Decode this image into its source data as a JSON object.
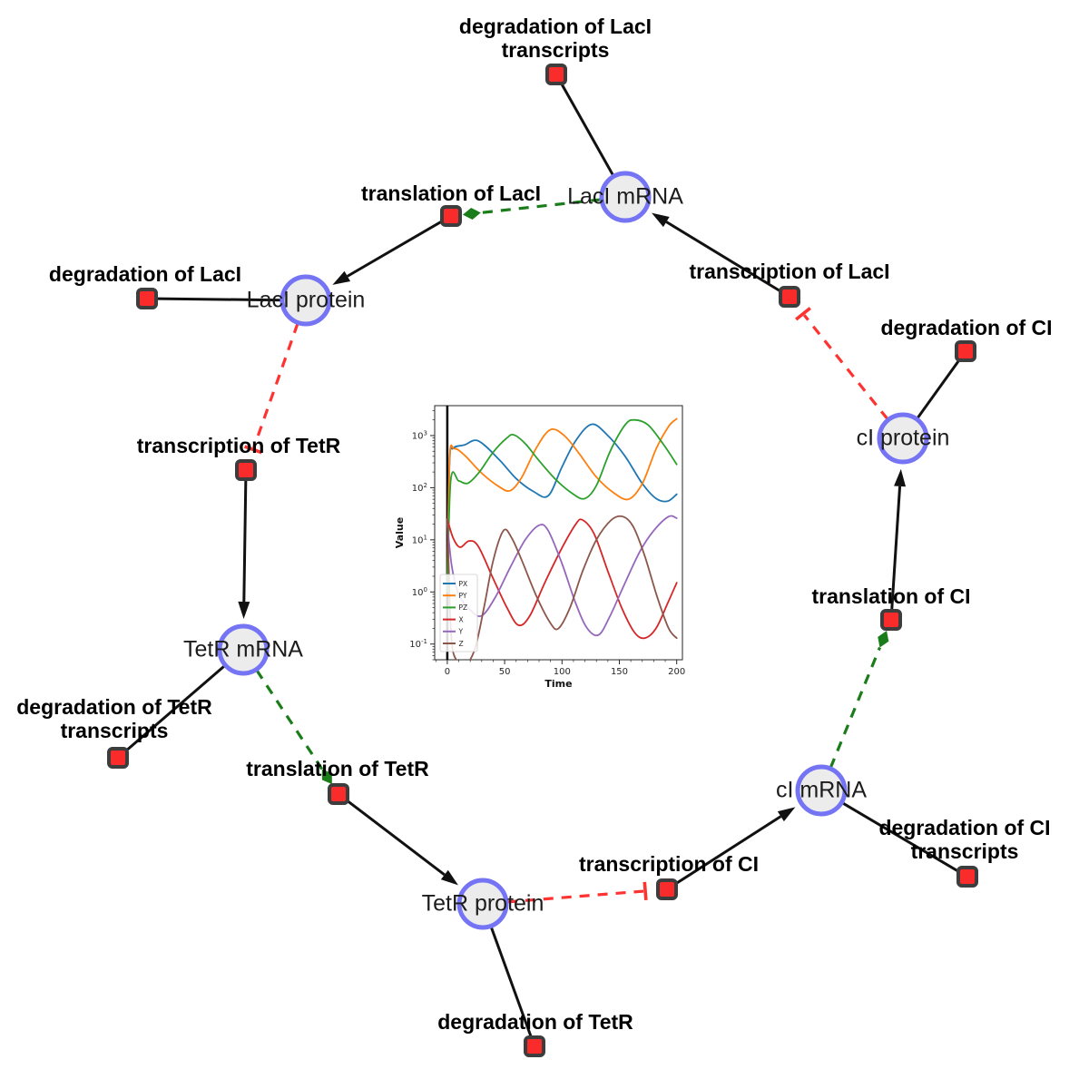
{
  "diagram": {
    "species": [
      {
        "id": "laci_mrna",
        "label": "LacI mRNA"
      },
      {
        "id": "laci_protein",
        "label": "LacI protein"
      },
      {
        "id": "tetr_mrna",
        "label": "TetR mRNA"
      },
      {
        "id": "tetr_protein",
        "label": "TetR protein"
      },
      {
        "id": "ci_mrna",
        "label": "cI mRNA"
      },
      {
        "id": "ci_protein",
        "label": "cI protein"
      }
    ],
    "reactions": [
      {
        "id": "deg_laci_tr",
        "label": "degradation of LacI transcripts"
      },
      {
        "id": "transl_laci",
        "label": "translation of LacI"
      },
      {
        "id": "deg_laci",
        "label": "degradation of LacI"
      },
      {
        "id": "transc_tetr",
        "label": "transcription of TetR"
      },
      {
        "id": "deg_tetr_tr",
        "label": "degradation of TetR transcripts"
      },
      {
        "id": "transl_tetr",
        "label": "translation of TetR"
      },
      {
        "id": "deg_tetr",
        "label": "degradation of TetR"
      },
      {
        "id": "transc_ci",
        "label": "transcription of CI"
      },
      {
        "id": "deg_ci_tr",
        "label": "degradation of CI transcripts"
      },
      {
        "id": "transl_ci",
        "label": "translation of CI"
      },
      {
        "id": "deg_ci",
        "label": "degradation of CI"
      },
      {
        "id": "transc_laci",
        "label": "transcription of LacI"
      }
    ],
    "edges": [
      {
        "source": "laci_mrna",
        "target": "deg_laci_tr",
        "type": "consumption"
      },
      {
        "source": "laci_mrna",
        "target": "transl_laci",
        "type": "modifier"
      },
      {
        "source": "transl_laci",
        "target": "laci_protein",
        "type": "production"
      },
      {
        "source": "laci_protein",
        "target": "deg_laci",
        "type": "consumption"
      },
      {
        "source": "laci_protein",
        "target": "transc_tetr",
        "type": "inhibition"
      },
      {
        "source": "transc_tetr",
        "target": "tetr_mrna",
        "type": "production"
      },
      {
        "source": "tetr_mrna",
        "target": "deg_tetr_tr",
        "type": "consumption"
      },
      {
        "source": "tetr_mrna",
        "target": "transl_tetr",
        "type": "modifier"
      },
      {
        "source": "transl_tetr",
        "target": "tetr_protein",
        "type": "production"
      },
      {
        "source": "tetr_protein",
        "target": "deg_tetr",
        "type": "consumption"
      },
      {
        "source": "tetr_protein",
        "target": "transc_ci",
        "type": "inhibition"
      },
      {
        "source": "transc_ci",
        "target": "ci_mrna",
        "type": "production"
      },
      {
        "source": "ci_mrna",
        "target": "deg_ci_tr",
        "type": "consumption"
      },
      {
        "source": "ci_mrna",
        "target": "transl_ci",
        "type": "modifier"
      },
      {
        "source": "transl_ci",
        "target": "ci_protein",
        "type": "production"
      },
      {
        "source": "ci_protein",
        "target": "deg_ci",
        "type": "consumption"
      },
      {
        "source": "ci_protein",
        "target": "transc_laci",
        "type": "inhibition"
      },
      {
        "source": "transc_laci",
        "target": "laci_mrna",
        "type": "production"
      }
    ],
    "colors": {
      "species_fill": "#ececec",
      "species_border": "#7474f4",
      "reaction_fill": "#fa2b2b",
      "reaction_border": "#3d3d3d",
      "edge_black": "#111111",
      "edge_modifier_green": "#1a7d1a",
      "edge_inhibition_red": "#ff3232"
    }
  },
  "chart_data": {
    "type": "line",
    "title": "",
    "xlabel": "Time",
    "ylabel": "Value",
    "x_ticks": [
      0,
      50,
      100,
      150,
      200
    ],
    "y_scale": "log",
    "y_tick_exponents": [
      -1,
      0,
      1,
      2,
      3
    ],
    "xlim": [
      -11,
      205
    ],
    "ylim": [
      0.05,
      3750
    ],
    "grid": false,
    "legend_position": "lower left",
    "event_line": {
      "x": 0,
      "color": "#000000"
    },
    "series": [
      {
        "name": "PX",
        "color": "#1f77b4",
        "points": [
          [
            0,
            1
          ],
          [
            2,
            300
          ],
          [
            5,
            570
          ],
          [
            15,
            660
          ],
          [
            27,
            790
          ],
          [
            45,
            350
          ],
          [
            60,
            150
          ],
          [
            75,
            85
          ],
          [
            88,
            70
          ],
          [
            100,
            250
          ],
          [
            112,
            800
          ],
          [
            126,
            1650
          ],
          [
            140,
            1000
          ],
          [
            155,
            400
          ],
          [
            170,
            120
          ],
          [
            182,
            62
          ],
          [
            192,
            55
          ],
          [
            200,
            75
          ]
        ]
      },
      {
        "name": "PY",
        "color": "#ff7f0e",
        "points": [
          [
            0,
            1
          ],
          [
            2,
            350
          ],
          [
            6,
            560
          ],
          [
            15,
            420
          ],
          [
            30,
            190
          ],
          [
            45,
            105
          ],
          [
            55,
            88
          ],
          [
            65,
            160
          ],
          [
            78,
            600
          ],
          [
            90,
            1300
          ],
          [
            102,
            1000
          ],
          [
            115,
            450
          ],
          [
            130,
            160
          ],
          [
            145,
            80
          ],
          [
            158,
            60
          ],
          [
            170,
            120
          ],
          [
            182,
            550
          ],
          [
            193,
            1500
          ],
          [
            200,
            2100
          ]
        ]
      },
      {
        "name": "PZ",
        "color": "#2ca02c",
        "points": [
          [
            0,
            1
          ],
          [
            3,
            140
          ],
          [
            10,
            135
          ],
          [
            18,
            122
          ],
          [
            28,
            200
          ],
          [
            40,
            480
          ],
          [
            52,
            900
          ],
          [
            58,
            1030
          ],
          [
            68,
            700
          ],
          [
            80,
            330
          ],
          [
            95,
            140
          ],
          [
            110,
            75
          ],
          [
            120,
            62
          ],
          [
            130,
            110
          ],
          [
            142,
            500
          ],
          [
            155,
            1600
          ],
          [
            163,
            2000
          ],
          [
            175,
            1600
          ],
          [
            188,
            700
          ],
          [
            200,
            280
          ]
        ]
      },
      {
        "name": "X",
        "color": "#d62728",
        "points": [
          [
            0,
            25
          ],
          [
            5,
            11
          ],
          [
            11,
            7.2
          ],
          [
            19,
            9.5
          ],
          [
            27,
            7.5
          ],
          [
            40,
            1.8
          ],
          [
            52,
            0.5
          ],
          [
            62,
            0.23
          ],
          [
            72,
            0.35
          ],
          [
            85,
            1.5
          ],
          [
            100,
            7
          ],
          [
            112,
            20
          ],
          [
            118,
            24
          ],
          [
            128,
            13
          ],
          [
            140,
            2.5
          ],
          [
            152,
            0.5
          ],
          [
            163,
            0.17
          ],
          [
            172,
            0.13
          ],
          [
            182,
            0.2
          ],
          [
            192,
            0.6
          ],
          [
            200,
            1.5
          ]
        ]
      },
      {
        "name": "Y",
        "color": "#9467bd",
        "points": [
          [
            0,
            20
          ],
          [
            4,
            3
          ],
          [
            10,
            0.9
          ],
          [
            20,
            0.45
          ],
          [
            30,
            0.35
          ],
          [
            42,
            0.8
          ],
          [
            55,
            3
          ],
          [
            68,
            10
          ],
          [
            80,
            19
          ],
          [
            88,
            15
          ],
          [
            100,
            3.5
          ],
          [
            112,
            0.6
          ],
          [
            122,
            0.2
          ],
          [
            132,
            0.15
          ],
          [
            142,
            0.35
          ],
          [
            155,
            1.5
          ],
          [
            168,
            6
          ],
          [
            180,
            15
          ],
          [
            193,
            28
          ],
          [
            200,
            26
          ]
        ]
      },
      {
        "name": "Z",
        "color": "#8c564b",
        "points": [
          [
            0,
            25
          ],
          [
            1.5,
            2
          ],
          [
            3,
            0.2
          ],
          [
            6,
            0.06
          ],
          [
            15,
            0.04
          ],
          [
            24,
            0.08
          ],
          [
            32,
            0.5
          ],
          [
            40,
            4
          ],
          [
            49,
            15
          ],
          [
            56,
            11
          ],
          [
            65,
            4
          ],
          [
            78,
            0.8
          ],
          [
            90,
            0.25
          ],
          [
            97,
            0.2
          ],
          [
            107,
            0.5
          ],
          [
            118,
            2.5
          ],
          [
            130,
            10
          ],
          [
            143,
            24
          ],
          [
            153,
            28
          ],
          [
            162,
            18
          ],
          [
            172,
            5
          ],
          [
            183,
            0.8
          ],
          [
            193,
            0.2
          ],
          [
            200,
            0.13
          ]
        ]
      }
    ]
  }
}
